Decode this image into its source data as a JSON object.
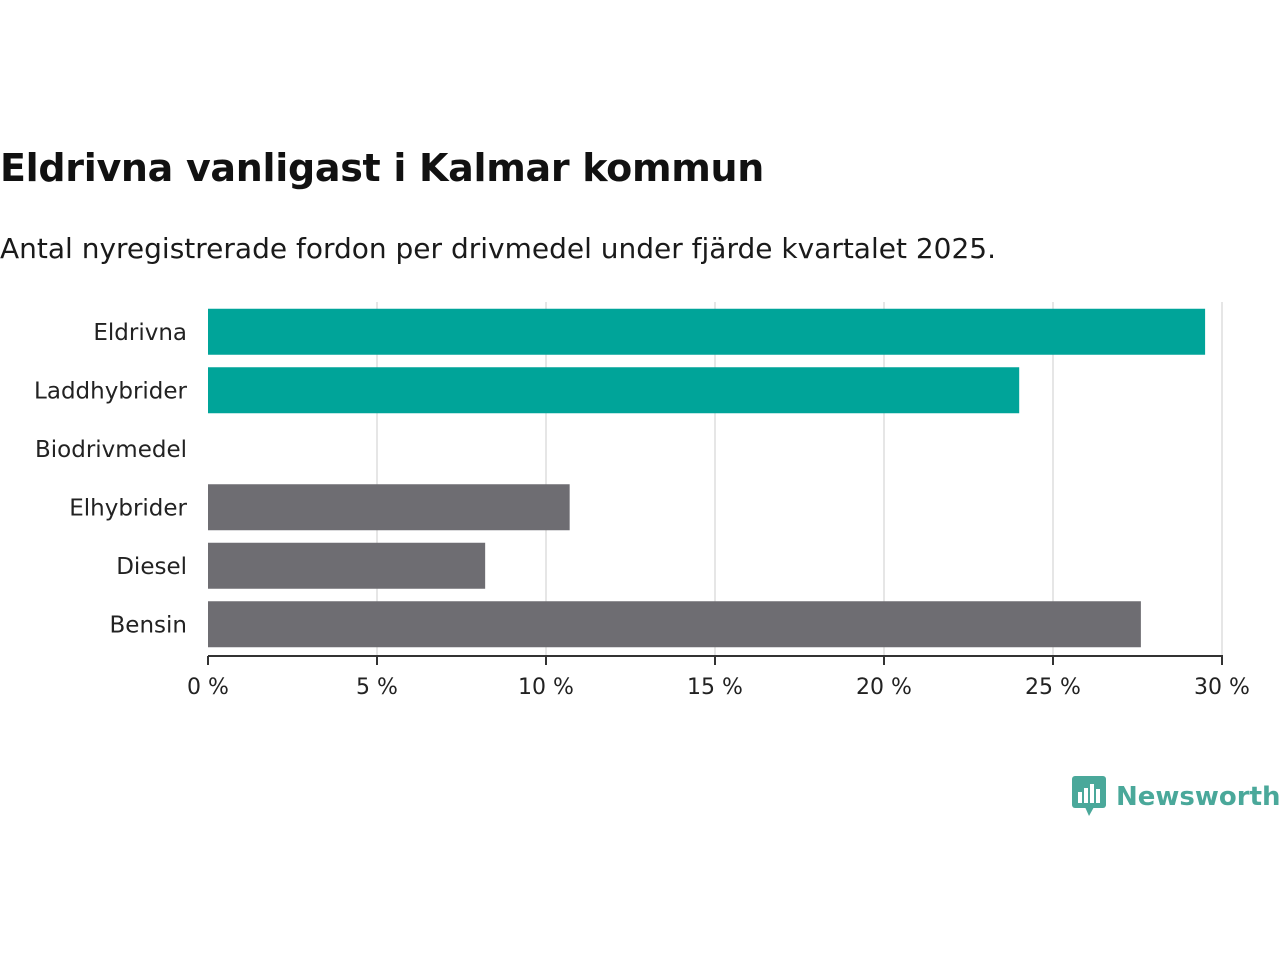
{
  "title": "Eldrivna vanligast i Kalmar kommun",
  "subtitle": "Antal nyregistrerade fordon per drivmedel under fjärde kvartalet 2025.",
  "brand": {
    "name": "Newsworthy",
    "icon": "bar-chart-speech-bubble-icon",
    "color": "#4aa89a"
  },
  "colors": {
    "highlight": "#00a499",
    "default": "#6e6d72",
    "grid": "#dddddd",
    "axis": "#333333"
  },
  "chart_data": {
    "type": "bar",
    "orientation": "horizontal",
    "title": "Eldrivna vanligast i Kalmar kommun",
    "subtitle": "Antal nyregistrerade fordon per drivmedel under fjärde kvartalet 2025.",
    "categories": [
      "Eldrivna",
      "Laddhybrider",
      "Biodrivmedel",
      "Elhybrider",
      "Diesel",
      "Bensin"
    ],
    "values": [
      29.5,
      24.0,
      0,
      10.7,
      8.2,
      27.6
    ],
    "highlighted": [
      true,
      true,
      false,
      false,
      false,
      false
    ],
    "xlim": [
      0,
      30
    ],
    "xticks": [
      0,
      5,
      10,
      15,
      20,
      25,
      30
    ],
    "tick_labels": [
      "0 %",
      "5 %",
      "10 %",
      "15 %",
      "20 %",
      "25 %",
      "30 %"
    ],
    "xlabel": "",
    "ylabel": "",
    "grid": true
  }
}
